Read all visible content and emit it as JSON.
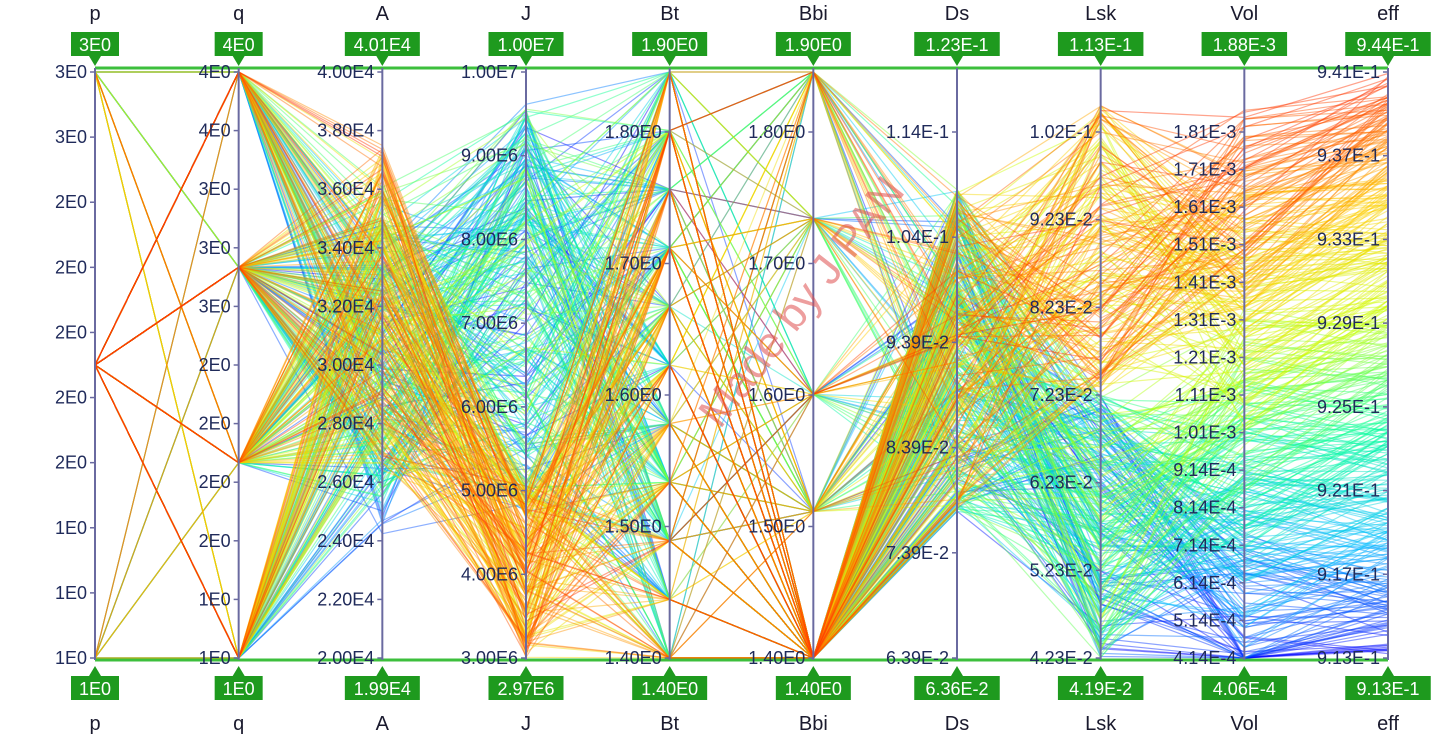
{
  "watermark": "Made by J PAN",
  "chart_data": {
    "type": "parallel-coordinates",
    "title": "",
    "grid": false,
    "axes": [
      {
        "name": "p",
        "top_badge": "3E0",
        "bottom_badge": "1E0",
        "ticks": [
          "3E0",
          "3E0",
          "2E0",
          "2E0",
          "2E0",
          "2E0",
          "2E0",
          "1E0",
          "1E0",
          "1E0"
        ],
        "range": [
          1,
          3
        ]
      },
      {
        "name": "q",
        "top_badge": "4E0",
        "bottom_badge": "1E0",
        "ticks": [
          "4E0",
          "4E0",
          "3E0",
          "3E0",
          "3E0",
          "2E0",
          "2E0",
          "2E0",
          "2E0",
          "1E0",
          "1E0"
        ],
        "range": [
          1,
          4
        ]
      },
      {
        "name": "A",
        "top_badge": "4.01E4",
        "bottom_badge": "1.99E4",
        "ticks": [
          "4.00E4",
          "3.80E4",
          "3.60E4",
          "3.40E4",
          "3.20E4",
          "3.00E4",
          "2.80E4",
          "2.60E4",
          "2.40E4",
          "2.20E4",
          "2.00E4"
        ],
        "range": [
          19900,
          40100
        ]
      },
      {
        "name": "J",
        "top_badge": "1.00E7",
        "bottom_badge": "2.97E6",
        "ticks": [
          "1.00E7",
          "9.00E6",
          "8.00E6",
          "7.00E6",
          "6.00E6",
          "5.00E6",
          "4.00E6",
          "3.00E6"
        ],
        "range": [
          2970000,
          10000000
        ]
      },
      {
        "name": "Bt",
        "top_badge": "1.90E0",
        "bottom_badge": "1.40E0",
        "ticks": [
          "1.80E0",
          "1.70E0",
          "1.60E0",
          "1.50E0",
          "1.40E0"
        ],
        "range": [
          1.4,
          1.9
        ]
      },
      {
        "name": "Bbi",
        "top_badge": "1.90E0",
        "bottom_badge": "1.40E0",
        "ticks": [
          "1.80E0",
          "1.70E0",
          "1.60E0",
          "1.50E0",
          "1.40E0"
        ],
        "range": [
          1.4,
          1.9
        ]
      },
      {
        "name": "Ds",
        "top_badge": "1.23E-1",
        "bottom_badge": "6.36E-2",
        "ticks": [
          "1.14E-1",
          "1.04E-1",
          "9.39E-2",
          "8.39E-2",
          "7.39E-2",
          "6.39E-2"
        ],
        "range": [
          0.0636,
          0.123
        ]
      },
      {
        "name": "Lsk",
        "top_badge": "1.13E-1",
        "bottom_badge": "4.19E-2",
        "ticks": [
          "1.02E-1",
          "9.23E-2",
          "8.23E-2",
          "7.23E-2",
          "6.23E-2",
          "5.23E-2",
          "4.23E-2"
        ],
        "range": [
          0.0419,
          0.113
        ]
      },
      {
        "name": "Vol",
        "top_badge": "1.88E-3",
        "bottom_badge": "4.06E-4",
        "ticks": [
          "1.81E-3",
          "1.71E-3",
          "1.61E-3",
          "1.51E-3",
          "1.41E-3",
          "1.31E-3",
          "1.21E-3",
          "1.11E-3",
          "1.01E-3",
          "9.14E-4",
          "8.14E-4",
          "7.14E-4",
          "6.14E-4",
          "5.14E-4",
          "4.14E-4"
        ],
        "range": [
          0.000406,
          0.00188
        ]
      },
      {
        "name": "eff",
        "top_badge": "9.44E-1",
        "bottom_badge": "9.13E-1",
        "ticks": [
          "9.41E-1",
          "9.37E-1",
          "9.33E-1",
          "9.29E-1",
          "9.25E-1",
          "9.21E-1",
          "9.17E-1",
          "9.13E-1"
        ],
        "range": [
          0.913,
          0.944
        ]
      }
    ],
    "color_by": "eff",
    "colormap": [
      "#0000ff",
      "#00bfff",
      "#00ff99",
      "#ccff00",
      "#ffcc00",
      "#ff3300"
    ],
    "badge_color": "#1e9a1e",
    "frame_color": "#3cbf3c",
    "axis_color": "#6a6aa0",
    "line_count": 480
  }
}
